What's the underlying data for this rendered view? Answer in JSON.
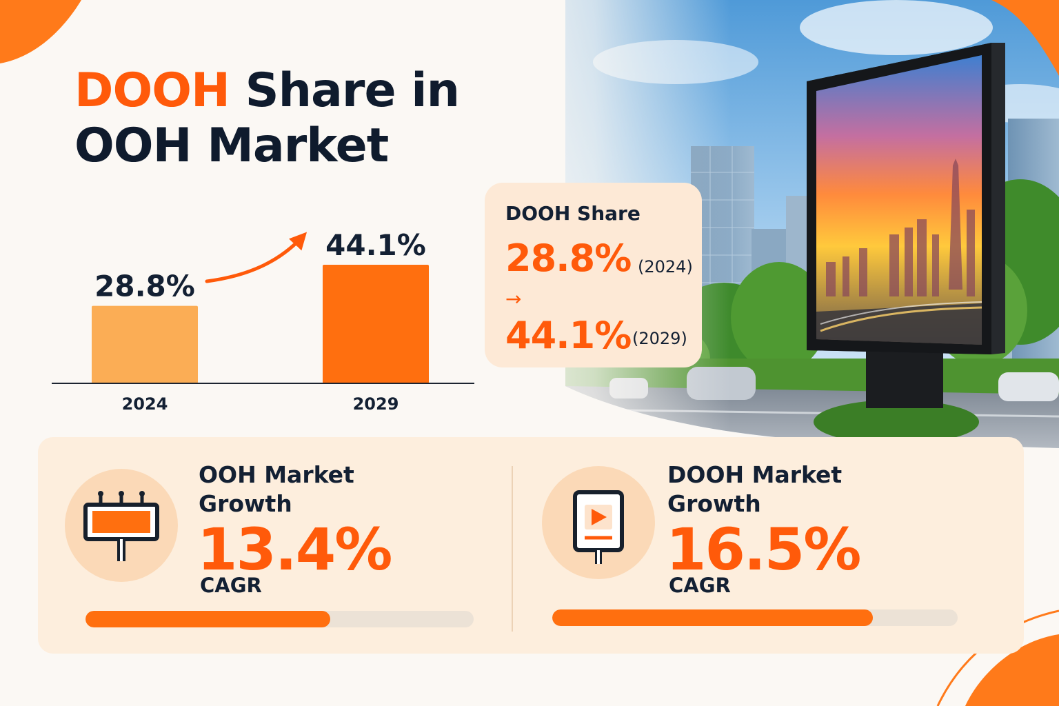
{
  "title": {
    "highlight": "DOOH",
    "rest_line1": "Share in",
    "line2": "OOH Market"
  },
  "chart_data": {
    "type": "bar",
    "categories": [
      "2024",
      "2029"
    ],
    "values": [
      28.8,
      44.1
    ],
    "value_labels": [
      "28.8%",
      "44.1%"
    ],
    "ylim": [
      0,
      50
    ],
    "colors": [
      "#fbad55",
      "#ff6f0f"
    ]
  },
  "share_card": {
    "label": "DOOH Share",
    "from_value": "28.8%",
    "from_year": "(2024)",
    "arrow": "→",
    "to_value": "44.1%",
    "to_year": "(2029)"
  },
  "growth": [
    {
      "label_line1": "OOH Market",
      "label_line2": "Growth",
      "value": "13.4%",
      "unit": "CAGR",
      "icon": "billboard-icon",
      "progress": 0.63
    },
    {
      "label_line1": "DOOH Market",
      "label_line2": "Growth",
      "value": "16.5%",
      "unit": "CAGR",
      "icon": "digital-screen-icon",
      "progress": 0.79
    }
  ],
  "colors": {
    "accent": "#ff5a0a",
    "accent_light": "#fbad55",
    "text_dark": "#132033",
    "card_bg": "#fde9d6"
  }
}
